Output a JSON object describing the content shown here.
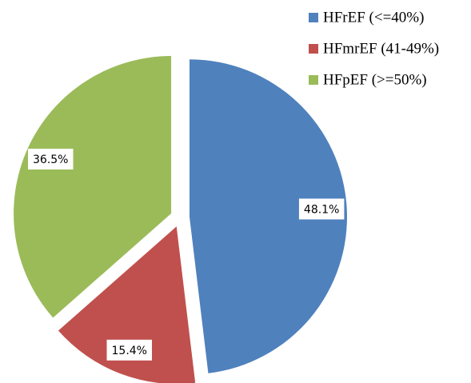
{
  "chart_data": {
    "type": "pie",
    "categories": [
      "HFrEF (<=40%)",
      "HFmrEF (41-49%)",
      "HFpEF (>=50%)"
    ],
    "values": [
      48.1,
      15.4,
      36.5
    ],
    "value_labels": [
      "48.1%",
      "15.4%",
      "36.5%"
    ],
    "colors": [
      "#4f81bd",
      "#c0504d",
      "#9bbb59"
    ],
    "legend": "top-right"
  }
}
